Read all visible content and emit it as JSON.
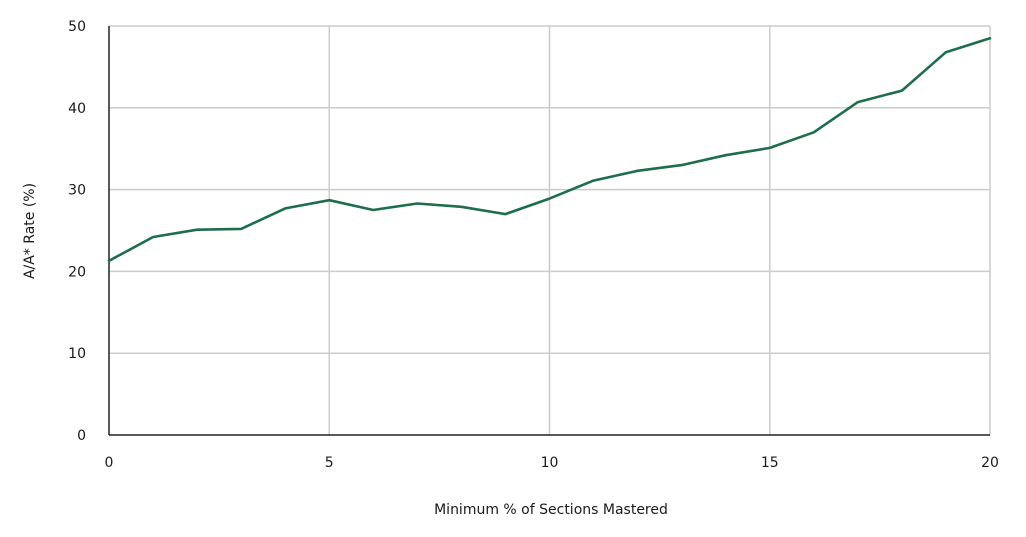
{
  "chart_data": {
    "type": "line",
    "title": "",
    "xlabel": "Minimum % of Sections Mastered",
    "ylabel": "A/A* Rate (%)",
    "xlim": [
      0,
      20
    ],
    "ylim": [
      0,
      50
    ],
    "xticks": [
      0,
      5,
      10,
      15,
      20
    ],
    "yticks": [
      0,
      10,
      20,
      30,
      40,
      50
    ],
    "grid": true,
    "legend": "none",
    "colors": {
      "line": "#1e6e4e",
      "grid": "#cccccc",
      "axis": "#222222"
    },
    "series": [
      {
        "x": [
          0,
          1,
          2,
          3,
          4,
          5,
          6,
          7,
          8,
          9,
          10,
          11,
          12,
          13,
          14,
          15,
          16,
          17,
          18,
          19,
          20
        ],
        "values": [
          21.3,
          24.2,
          25.1,
          25.2,
          27.7,
          28.7,
          27.5,
          28.3,
          27.9,
          27.0,
          28.9,
          31.1,
          32.3,
          33.0,
          34.2,
          35.1,
          37.0,
          40.7,
          42.1,
          46.8,
          48.5
        ]
      }
    ]
  }
}
